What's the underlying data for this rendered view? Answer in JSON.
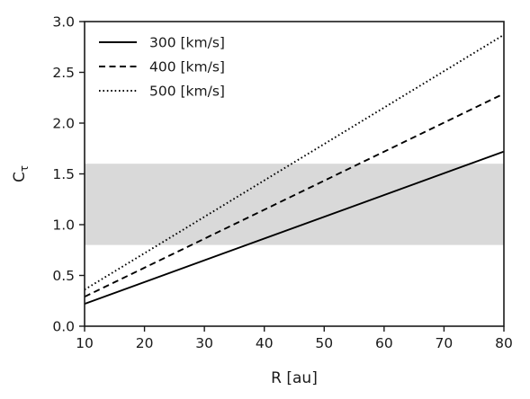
{
  "chart_data": {
    "type": "line",
    "xlabel": "R [au]",
    "ylabel": "C",
    "ylabel_subscript": "τ",
    "xlim": [
      10,
      80
    ],
    "ylim": [
      0.0,
      3.0
    ],
    "x_ticks": [
      "10",
      "20",
      "30",
      "40",
      "50",
      "60",
      "70",
      "80"
    ],
    "y_ticks": [
      "0.0",
      "0.5",
      "1.0",
      "1.5",
      "2.0",
      "2.5",
      "3.0"
    ],
    "grid": false,
    "legend_position": "top-left",
    "shaded_band": {
      "y_from": 0.8,
      "y_to": 1.6,
      "color": "#d9d9d9"
    },
    "series": [
      {
        "name": "300 [km/s]",
        "style": "solid",
        "color": "#000000",
        "x": [
          10,
          80
        ],
        "y": [
          0.22,
          1.72
        ]
      },
      {
        "name": "400 [km/s]",
        "style": "dashed",
        "color": "#000000",
        "x": [
          10,
          80
        ],
        "y": [
          0.29,
          2.29
        ]
      },
      {
        "name": "500 [km/s]",
        "style": "dotted",
        "color": "#000000",
        "x": [
          10,
          80
        ],
        "y": [
          0.36,
          2.87
        ]
      }
    ]
  }
}
